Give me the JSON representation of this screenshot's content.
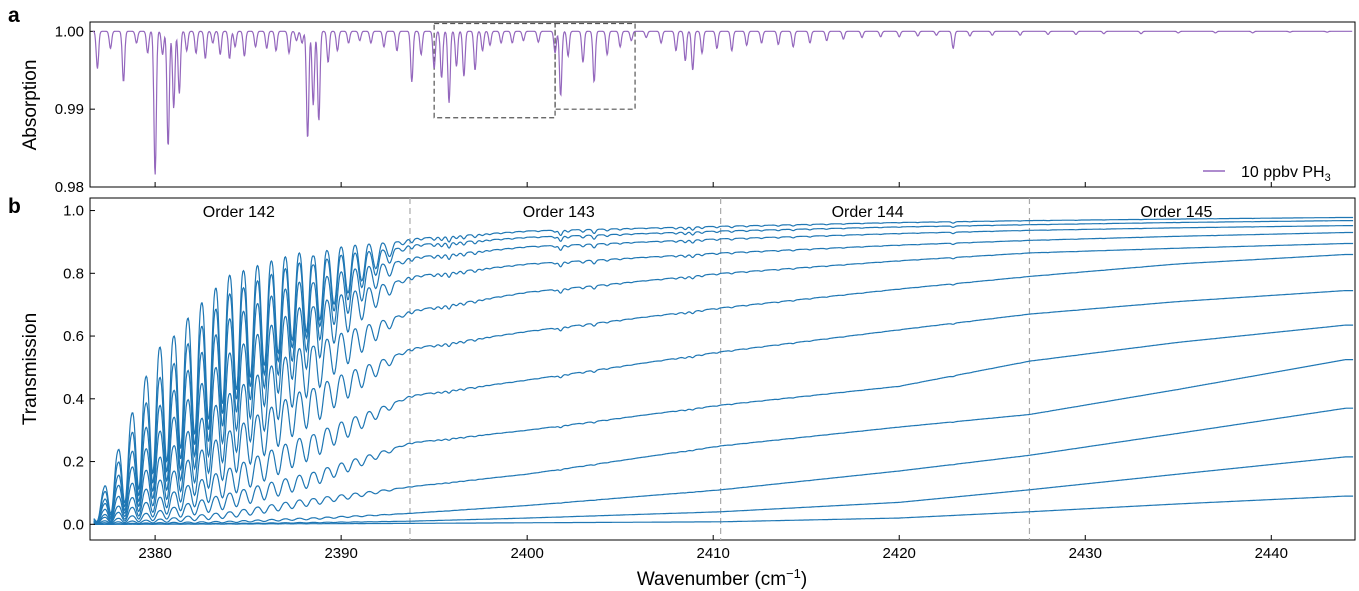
{
  "colors": {
    "absorption": "#9467bd",
    "transmission": "#1f77b4",
    "order_divider": "#aaaaaa",
    "zoom_box": "#555555"
  },
  "chart_data": [
    {
      "panel": "a",
      "type": "line",
      "ylabel": "Absorption",
      "xlim": [
        2376.5,
        2444.5
      ],
      "ylim": [
        0.98,
        1.0012
      ],
      "yticks": [
        0.98,
        0.99,
        1.0
      ],
      "ytick_labels": [
        "0.98",
        "0.99",
        "1.00"
      ],
      "xticks": [
        2380,
        2390,
        2400,
        2410,
        2420,
        2430,
        2440
      ],
      "xtick_labels": [],
      "legend": {
        "label": "10 ppbv PH",
        "subscript": "3",
        "position": "lower-right"
      },
      "series": [
        {
          "name": "10 ppbv PH3",
          "baseline": 1.0,
          "lines": [
            {
              "x": 2376.9,
              "y": 0.9952
            },
            {
              "x": 2377.6,
              "y": 0.9978
            },
            {
              "x": 2378.3,
              "y": 0.9935
            },
            {
              "x": 2379.0,
              "y": 0.9985
            },
            {
              "x": 2379.6,
              "y": 0.9972
            },
            {
              "x": 2380.0,
              "y": 0.9815
            },
            {
              "x": 2380.4,
              "y": 0.997
            },
            {
              "x": 2380.7,
              "y": 0.9852
            },
            {
              "x": 2381.0,
              "y": 0.9901
            },
            {
              "x": 2381.3,
              "y": 0.992
            },
            {
              "x": 2381.7,
              "y": 0.9975
            },
            {
              "x": 2382.2,
              "y": 0.9972
            },
            {
              "x": 2382.7,
              "y": 0.9965
            },
            {
              "x": 2383.1,
              "y": 0.9985
            },
            {
              "x": 2383.5,
              "y": 0.997
            },
            {
              "x": 2384.0,
              "y": 0.9965
            },
            {
              "x": 2384.3,
              "y": 0.998
            },
            {
              "x": 2384.8,
              "y": 0.9968
            },
            {
              "x": 2385.4,
              "y": 0.998
            },
            {
              "x": 2386.0,
              "y": 0.9978
            },
            {
              "x": 2386.5,
              "y": 0.9975
            },
            {
              "x": 2387.2,
              "y": 0.9972
            },
            {
              "x": 2387.6,
              "y": 0.9988
            },
            {
              "x": 2387.9,
              "y": 0.9985
            },
            {
              "x": 2388.2,
              "y": 0.9862
            },
            {
              "x": 2388.5,
              "y": 0.9905
            },
            {
              "x": 2388.8,
              "y": 0.9885
            },
            {
              "x": 2389.3,
              "y": 0.996
            },
            {
              "x": 2389.8,
              "y": 0.9975
            },
            {
              "x": 2390.4,
              "y": 0.9985
            },
            {
              "x": 2391.0,
              "y": 0.9988
            },
            {
              "x": 2391.6,
              "y": 0.9985
            },
            {
              "x": 2392.3,
              "y": 0.998
            },
            {
              "x": 2393.0,
              "y": 0.9975
            },
            {
              "x": 2393.8,
              "y": 0.9935
            },
            {
              "x": 2394.3,
              "y": 0.997
            },
            {
              "x": 2395.0,
              "y": 0.9952
            },
            {
              "x": 2395.4,
              "y": 0.994
            },
            {
              "x": 2395.8,
              "y": 0.9908
            },
            {
              "x": 2396.2,
              "y": 0.9955
            },
            {
              "x": 2396.6,
              "y": 0.9942
            },
            {
              "x": 2397.2,
              "y": 0.995
            },
            {
              "x": 2397.6,
              "y": 0.9975
            },
            {
              "x": 2398.0,
              "y": 0.9982
            },
            {
              "x": 2398.6,
              "y": 0.9985
            },
            {
              "x": 2399.2,
              "y": 0.9985
            },
            {
              "x": 2399.8,
              "y": 0.9988
            },
            {
              "x": 2400.6,
              "y": 0.9986
            },
            {
              "x": 2401.5,
              "y": 0.9972
            },
            {
              "x": 2401.8,
              "y": 0.9917
            },
            {
              "x": 2402.2,
              "y": 0.9968
            },
            {
              "x": 2403.0,
              "y": 0.996
            },
            {
              "x": 2403.6,
              "y": 0.9935
            },
            {
              "x": 2404.3,
              "y": 0.997
            },
            {
              "x": 2405.0,
              "y": 0.998
            },
            {
              "x": 2405.6,
              "y": 0.9988
            },
            {
              "x": 2406.4,
              "y": 0.9992
            },
            {
              "x": 2407.2,
              "y": 0.9985
            },
            {
              "x": 2408.0,
              "y": 0.9975
            },
            {
              "x": 2408.5,
              "y": 0.9962
            },
            {
              "x": 2408.9,
              "y": 0.995
            },
            {
              "x": 2409.4,
              "y": 0.9972
            },
            {
              "x": 2410.2,
              "y": 0.9978
            },
            {
              "x": 2411.0,
              "y": 0.9975
            },
            {
              "x": 2411.8,
              "y": 0.9982
            },
            {
              "x": 2412.6,
              "y": 0.9985
            },
            {
              "x": 2413.5,
              "y": 0.9983
            },
            {
              "x": 2414.3,
              "y": 0.998
            },
            {
              "x": 2415.2,
              "y": 0.9985
            },
            {
              "x": 2416.1,
              "y": 0.9988
            },
            {
              "x": 2417.0,
              "y": 0.999
            },
            {
              "x": 2418.0,
              "y": 0.9992
            },
            {
              "x": 2419.0,
              "y": 0.9993
            },
            {
              "x": 2420.0,
              "y": 0.9993
            },
            {
              "x": 2421.0,
              "y": 0.9994
            },
            {
              "x": 2422.0,
              "y": 0.9995
            },
            {
              "x": 2422.9,
              "y": 0.9978
            },
            {
              "x": 2423.8,
              "y": 0.9994
            },
            {
              "x": 2425.0,
              "y": 0.9995
            },
            {
              "x": 2426.5,
              "y": 0.9995
            },
            {
              "x": 2428.0,
              "y": 0.9996
            },
            {
              "x": 2429.5,
              "y": 0.9996
            },
            {
              "x": 2431.0,
              "y": 0.9997
            },
            {
              "x": 2433.0,
              "y": 0.9997
            },
            {
              "x": 2435.0,
              "y": 0.9998
            },
            {
              "x": 2437.0,
              "y": 0.9998
            },
            {
              "x": 2439.0,
              "y": 0.9998
            },
            {
              "x": 2441.0,
              "y": 0.9999
            },
            {
              "x": 2443.0,
              "y": 0.9999
            }
          ]
        }
      ],
      "zoom_boxes": [
        {
          "x0": 2395.0,
          "x1": 2401.5,
          "y0": 0.9889,
          "y1": 1.001
        },
        {
          "x0": 2401.5,
          "x1": 2405.8,
          "y0": 0.99,
          "y1": 1.001
        }
      ]
    },
    {
      "panel": "b",
      "type": "line",
      "xlabel": "Wavenumber (cm",
      "xlabel_sup": "−1",
      "xlabel_suffix": ")",
      "ylabel": "Transmission",
      "xlim": [
        2376.5,
        2444.5
      ],
      "ylim": [
        -0.05,
        1.04
      ],
      "xticks": [
        2380,
        2390,
        2400,
        2410,
        2420,
        2430,
        2440
      ],
      "xtick_labels": [
        "2380",
        "2390",
        "2400",
        "2410",
        "2420",
        "2430",
        "2440"
      ],
      "yticks": [
        0.0,
        0.2,
        0.4,
        0.6,
        0.8,
        1.0
      ],
      "ytick_labels": [
        "0.0",
        "0.2",
        "0.4",
        "0.6",
        "0.8",
        "1.0"
      ],
      "order_dividers": [
        2393.7,
        2410.4,
        2427.0
      ],
      "order_labels": [
        {
          "text": "Order 142",
          "x": 2384.5
        },
        {
          "text": "Order 143",
          "x": 2401.7
        },
        {
          "text": "Order 144",
          "x": 2418.3
        },
        {
          "text": "Order 145",
          "x": 2434.9
        }
      ],
      "series": [
        {
          "name": "",
          "points": [
            [
              2376.7,
              0.03
            ],
            [
              2380,
              0.55
            ],
            [
              2384,
              0.8
            ],
            [
              2388,
              0.87
            ],
            [
              2393.7,
              0.91
            ],
            [
              2400,
              0.935
            ],
            [
              2410.4,
              0.95
            ],
            [
              2420,
              0.962
            ],
            [
              2427,
              0.968
            ],
            [
              2435,
              0.973
            ],
            [
              2444,
              0.978
            ]
          ]
        },
        {
          "name": "",
          "points": [
            [
              2376.7,
              0.03
            ],
            [
              2380,
              0.45
            ],
            [
              2384,
              0.74
            ],
            [
              2388,
              0.84
            ],
            [
              2393.7,
              0.89
            ],
            [
              2400,
              0.915
            ],
            [
              2410.4,
              0.935
            ],
            [
              2420,
              0.948
            ],
            [
              2427,
              0.955
            ],
            [
              2435,
              0.962
            ],
            [
              2444,
              0.968
            ]
          ]
        },
        {
          "name": "",
          "points": [
            [
              2376.7,
              0.02
            ],
            [
              2380,
              0.36
            ],
            [
              2384,
              0.66
            ],
            [
              2388,
              0.78
            ],
            [
              2393.7,
              0.85
            ],
            [
              2400,
              0.885
            ],
            [
              2410.4,
              0.91
            ],
            [
              2420,
              0.927
            ],
            [
              2427,
              0.937
            ],
            [
              2435,
              0.945
            ],
            [
              2444,
              0.952
            ]
          ]
        },
        {
          "name": "",
          "points": [
            [
              2376.7,
              0.02
            ],
            [
              2380,
              0.28
            ],
            [
              2384,
              0.55
            ],
            [
              2388,
              0.7
            ],
            [
              2393.7,
              0.79
            ],
            [
              2400,
              0.83
            ],
            [
              2410.4,
              0.865
            ],
            [
              2420,
              0.89
            ],
            [
              2427,
              0.905
            ],
            [
              2435,
              0.918
            ],
            [
              2444,
              0.93
            ]
          ]
        },
        {
          "name": "",
          "points": [
            [
              2376.7,
              0.015
            ],
            [
              2380,
              0.2
            ],
            [
              2384,
              0.42
            ],
            [
              2388,
              0.57
            ],
            [
              2393.7,
              0.68
            ],
            [
              2400,
              0.74
            ],
            [
              2410.4,
              0.8
            ],
            [
              2420,
              0.84
            ],
            [
              2427,
              0.865
            ],
            [
              2435,
              0.88
            ],
            [
              2444,
              0.895
            ]
          ]
        },
        {
          "name": "",
          "points": [
            [
              2376.7,
              0.01
            ],
            [
              2380,
              0.13
            ],
            [
              2384,
              0.3
            ],
            [
              2388,
              0.43
            ],
            [
              2393.7,
              0.56
            ],
            [
              2400,
              0.615
            ],
            [
              2410.4,
              0.69
            ],
            [
              2420,
              0.75
            ],
            [
              2427,
              0.79
            ],
            [
              2435,
              0.83
            ],
            [
              2444,
              0.86
            ]
          ]
        },
        {
          "name": "",
          "points": [
            [
              2376.7,
              0.01
            ],
            [
              2380,
              0.08
            ],
            [
              2384,
              0.18
            ],
            [
              2388,
              0.28
            ],
            [
              2393.7,
              0.41
            ],
            [
              2400,
              0.46
            ],
            [
              2410.4,
              0.55
            ],
            [
              2420,
              0.62
            ],
            [
              2427,
              0.67
            ],
            [
              2435,
              0.71
            ],
            [
              2444,
              0.745
            ]
          ]
        },
        {
          "name": "",
          "points": [
            [
              2376.7,
              0.005
            ],
            [
              2380,
              0.04
            ],
            [
              2384,
              0.1
            ],
            [
              2388,
              0.16
            ],
            [
              2393.7,
              0.26
            ],
            [
              2400,
              0.3
            ],
            [
              2410.4,
              0.38
            ],
            [
              2420,
              0.44
            ],
            [
              2427,
              0.52
            ],
            [
              2435,
              0.58
            ],
            [
              2444,
              0.635
            ]
          ]
        },
        {
          "name": "",
          "points": [
            [
              2376.7,
              0.003
            ],
            [
              2380,
              0.015
            ],
            [
              2384,
              0.04
            ],
            [
              2388,
              0.08
            ],
            [
              2393.7,
              0.12
            ],
            [
              2400,
              0.16
            ],
            [
              2410.4,
              0.25
            ],
            [
              2420,
              0.31
            ],
            [
              2427,
              0.35
            ],
            [
              2435,
              0.43
            ],
            [
              2444,
              0.525
            ]
          ]
        },
        {
          "name": "",
          "points": [
            [
              2376.7,
              0.0
            ],
            [
              2380,
              0.005
            ],
            [
              2384,
              0.01
            ],
            [
              2388,
              0.02
            ],
            [
              2393.7,
              0.035
            ],
            [
              2400,
              0.06
            ],
            [
              2410.4,
              0.11
            ],
            [
              2420,
              0.17
            ],
            [
              2427,
              0.22
            ],
            [
              2435,
              0.29
            ],
            [
              2444,
              0.37
            ]
          ]
        },
        {
          "name": "",
          "points": [
            [
              2376.7,
              0.0
            ],
            [
              2384,
              0.003
            ],
            [
              2393.7,
              0.01
            ],
            [
              2400,
              0.02
            ],
            [
              2410.4,
              0.04
            ],
            [
              2420,
              0.07
            ],
            [
              2427,
              0.11
            ],
            [
              2435,
              0.16
            ],
            [
              2444,
              0.215
            ]
          ]
        },
        {
          "name": "",
          "points": [
            [
              2376.7,
              0.0
            ],
            [
              2393.7,
              0.003
            ],
            [
              2410.4,
              0.008
            ],
            [
              2420,
              0.02
            ],
            [
              2427,
              0.04
            ],
            [
              2435,
              0.065
            ],
            [
              2444,
              0.09
            ]
          ]
        }
      ]
    }
  ]
}
